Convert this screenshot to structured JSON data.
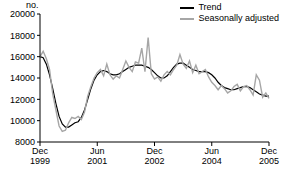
{
  "chart_data": {
    "type": "line",
    "y_label": "no.",
    "categories": [
      "Dec 1999",
      null,
      null,
      null,
      null,
      null,
      null,
      null,
      null,
      null,
      null,
      null,
      null,
      null,
      null,
      null,
      null,
      null,
      "Jun 2001",
      null,
      null,
      null,
      null,
      null,
      null,
      null,
      null,
      null,
      null,
      null,
      null,
      null,
      null,
      null,
      null,
      null,
      "Dec 2002",
      null,
      null,
      null,
      null,
      null,
      null,
      null,
      null,
      null,
      null,
      null,
      null,
      null,
      null,
      null,
      null,
      null,
      "Jun 2004",
      null,
      null,
      null,
      null,
      null,
      null,
      null,
      null,
      null,
      null,
      null,
      null,
      null,
      null,
      null,
      null,
      null,
      "Dec 2005"
    ],
    "series": [
      {
        "name": "Trend",
        "color": "#000000",
        "values": [
          16000,
          15900,
          15300,
          14300,
          13000,
          11600,
          10400,
          9700,
          9400,
          9400,
          9600,
          9800,
          9900,
          10300,
          11000,
          12000,
          13000,
          13800,
          14300,
          14600,
          14700,
          14600,
          14400,
          14300,
          14300,
          14400,
          14600,
          14800,
          15000,
          15100,
          15200,
          15200,
          15200,
          15100,
          15000,
          14800,
          14500,
          14200,
          14000,
          14000,
          14200,
          14600,
          15000,
          15300,
          15400,
          15400,
          15200,
          15000,
          14800,
          14700,
          14600,
          14600,
          14600,
          14500,
          14300,
          14000,
          13600,
          13300,
          13100,
          13000,
          12900,
          12900,
          13000,
          13100,
          13200,
          13200,
          13100,
          12900,
          12700,
          12500,
          12400,
          12300,
          12300
        ]
      },
      {
        "name": "Seasonally adjusted",
        "color": "#a6a6a6",
        "values": [
          16000,
          16500,
          15800,
          14800,
          12500,
          11000,
          9500,
          9000,
          9100,
          9800,
          10300,
          10200,
          10400,
          10100,
          10800,
          12300,
          13200,
          14000,
          14500,
          14800,
          14200,
          15300,
          14300,
          13900,
          14200,
          14000,
          14800,
          15600,
          15000,
          14600,
          15500,
          15400,
          16800,
          14600,
          17800,
          14400,
          13900,
          14100,
          13700,
          14300,
          14600,
          14300,
          14800,
          15200,
          16200,
          15300,
          14900,
          15600,
          14500,
          15200,
          14400,
          14600,
          14800,
          14100,
          13600,
          13300,
          12900,
          13300,
          13000,
          12600,
          12800,
          13200,
          13400,
          12800,
          13200,
          13300,
          12900,
          12400,
          14300,
          13800,
          12200,
          12600,
          12100
        ]
      }
    ],
    "ylim": [
      8000,
      20000
    ],
    "yticks": [
      8000,
      10000,
      12000,
      14000,
      16000,
      18000,
      20000
    ],
    "grid": false,
    "legend": "upper right"
  }
}
